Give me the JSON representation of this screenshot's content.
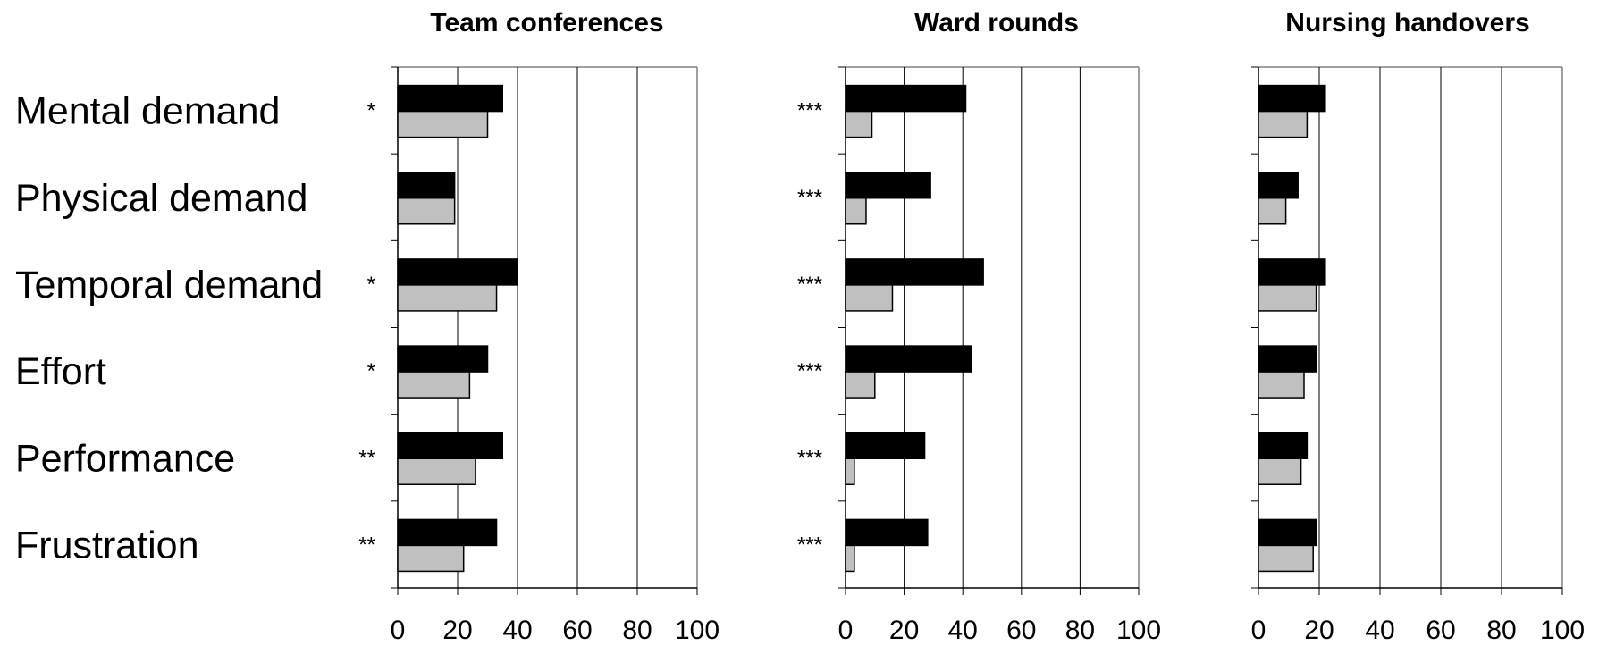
{
  "chart_data": {
    "type": "bar",
    "orientation": "horizontal",
    "categories": [
      "Mental demand",
      "Physical demand",
      "Temporal demand",
      "Effort",
      "Performance",
      "Frustration"
    ],
    "xlim": [
      0,
      100
    ],
    "xticks": [
      "0",
      "20",
      "40",
      "60",
      "80",
      "100"
    ],
    "grid": "vertical",
    "colors": {
      "series_1": "#000000",
      "series_2": "#c0c0c0"
    },
    "panels": [
      {
        "title": "Team conferences",
        "significance": [
          "*",
          "",
          "*",
          "*",
          "**",
          "**"
        ],
        "series": [
          {
            "values": [
              35,
              19,
              40,
              30,
              35,
              33
            ]
          },
          {
            "values": [
              30,
              19,
              33,
              24,
              26,
              22
            ]
          }
        ]
      },
      {
        "title": "Ward rounds",
        "significance": [
          "***",
          "***",
          "***",
          "***",
          "***",
          "***"
        ],
        "series": [
          {
            "values": [
              41,
              29,
              47,
              43,
              27,
              28
            ]
          },
          {
            "values": [
              9,
              7,
              16,
              10,
              3,
              3
            ]
          }
        ]
      },
      {
        "title": "Nursing handovers",
        "significance": [
          "",
          "",
          "",
          "",
          "",
          ""
        ],
        "series": [
          {
            "values": [
              22,
              13,
              22,
              19,
              16,
              19
            ]
          },
          {
            "values": [
              16,
              9,
              19,
              15,
              14,
              18
            ]
          }
        ]
      }
    ]
  }
}
